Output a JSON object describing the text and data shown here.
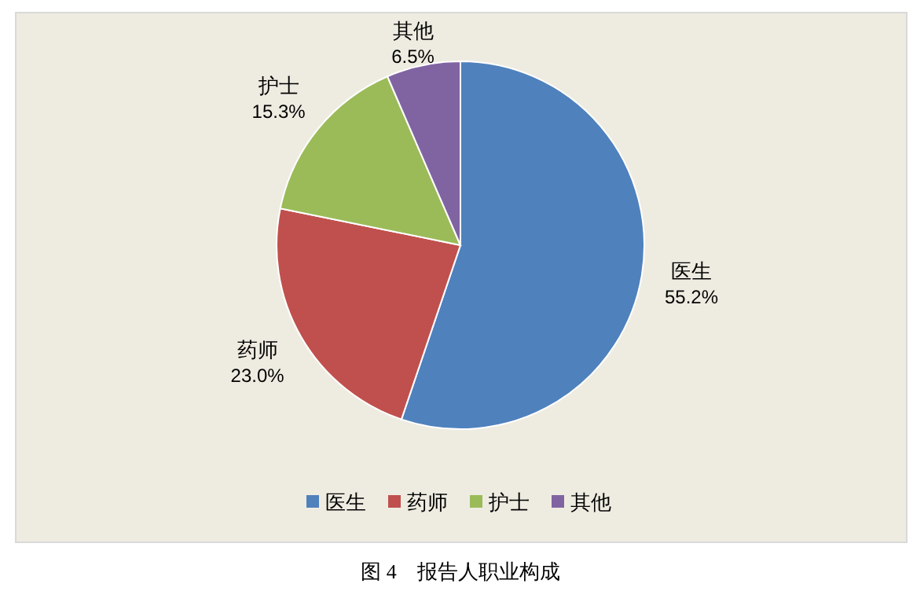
{
  "chart_data": {
    "type": "pie",
    "title": "图 4　报告人职业构成",
    "categories": [
      "医生",
      "药师",
      "护士",
      "其他"
    ],
    "values": [
      55.2,
      23.0,
      15.3,
      6.5
    ],
    "value_labels": [
      "55.2%",
      "23.0%",
      "15.3%",
      "6.5%"
    ],
    "colors": [
      "#4f81bd",
      "#c0504d",
      "#9bbb59",
      "#8064a2"
    ],
    "legend": "bottom"
  }
}
